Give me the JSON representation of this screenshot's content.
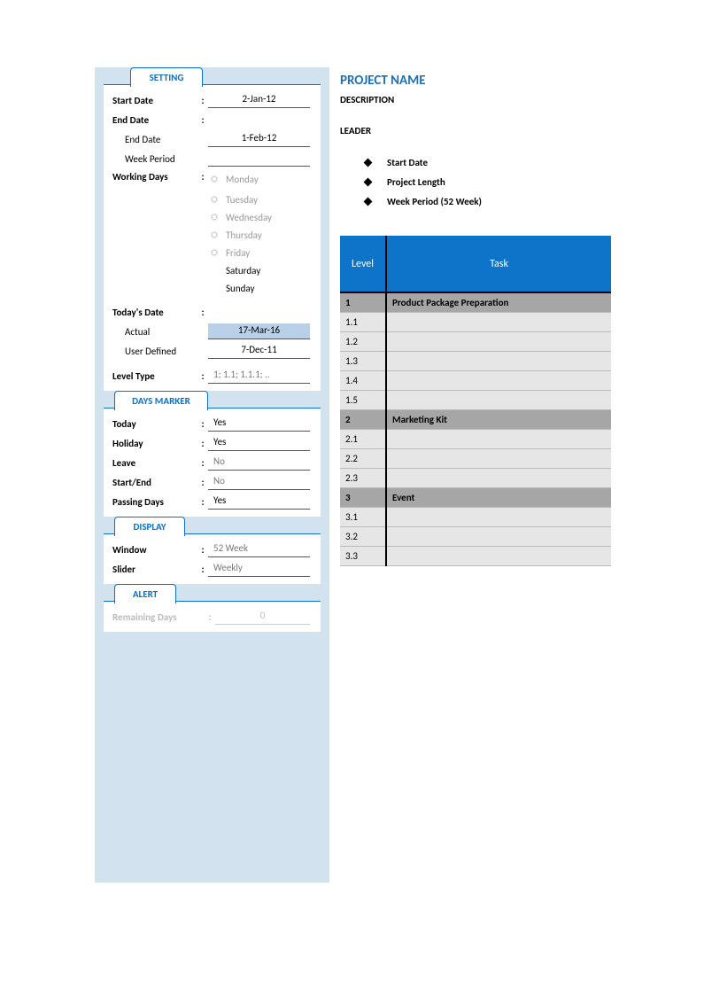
{
  "tabs": {
    "setting": "SETTING",
    "daysMarker": "DAYS MARKER",
    "display": "DISPLAY",
    "alert": "ALERT"
  },
  "setting": {
    "startDate": {
      "label": "Start Date",
      "value": "2-Jan-12"
    },
    "endDate": {
      "label": "End Date"
    },
    "endDateSub": {
      "label": "End Date",
      "value": "1-Feb-12"
    },
    "weekPeriod": {
      "label": "Week Period",
      "value": ""
    },
    "workingDays": {
      "label": "Working Days",
      "days": [
        {
          "name": "Monday",
          "disabled": true
        },
        {
          "name": "Tuesday",
          "disabled": true
        },
        {
          "name": "Wednesday",
          "disabled": true
        },
        {
          "name": "Thursday",
          "disabled": true
        },
        {
          "name": "Friday",
          "disabled": true
        },
        {
          "name": "Saturday",
          "disabled": false
        },
        {
          "name": "Sunday",
          "disabled": false
        }
      ]
    },
    "todaysDate": {
      "label": "Today's Date"
    },
    "actual": {
      "label": "Actual",
      "value": "17-Mar-16"
    },
    "userDefined": {
      "label": "User Defined",
      "value": "7-Dec-11"
    },
    "levelType": {
      "label": "Level Type",
      "value": "1; 1.1; 1.1.1; .."
    }
  },
  "daysMarker": {
    "today": {
      "label": "Today",
      "value": "Yes"
    },
    "holiday": {
      "label": "Holiday",
      "value": "Yes"
    },
    "leave": {
      "label": "Leave",
      "value": "No"
    },
    "startEnd": {
      "label": "Start/End",
      "value": "No"
    },
    "passingDays": {
      "label": "Passing Days",
      "value": "Yes"
    }
  },
  "display": {
    "window": {
      "label": "Window",
      "value": "52 Week"
    },
    "slider": {
      "label": "Slider",
      "value": "Weekly"
    }
  },
  "alert": {
    "remaining": {
      "label": "Remaining Days",
      "value": "0"
    }
  },
  "project": {
    "title": "PROJECT NAME",
    "description": "DESCRIPTION",
    "leader": "LEADER",
    "bullets": [
      "Start Date",
      "Project Length",
      "Week Period (52 Week)"
    ]
  },
  "grid": {
    "headers": {
      "level": "Level",
      "task": "Task"
    },
    "rows": [
      {
        "level": "1",
        "task": "Product Package Preparation",
        "type": "h"
      },
      {
        "level": "1.1",
        "task": "",
        "type": "s"
      },
      {
        "level": "1.2",
        "task": "",
        "type": "s"
      },
      {
        "level": "1.3",
        "task": "",
        "type": "s"
      },
      {
        "level": "1.4",
        "task": "",
        "type": "s"
      },
      {
        "level": "1.5",
        "task": "",
        "type": "s"
      },
      {
        "level": "2",
        "task": "Marketing Kit",
        "type": "h"
      },
      {
        "level": "2.1",
        "task": "",
        "type": "s"
      },
      {
        "level": "2.2",
        "task": "",
        "type": "s"
      },
      {
        "level": "2.3",
        "task": "",
        "type": "s"
      },
      {
        "level": "3",
        "task": "Event",
        "type": "h"
      },
      {
        "level": "3.1",
        "task": "",
        "type": "s"
      },
      {
        "level": "3.2",
        "task": "",
        "type": "s"
      },
      {
        "level": "3.3",
        "task": "",
        "type": "s"
      }
    ]
  },
  "colors": {
    "panelBg": "#d3e2ef",
    "accent": "#0f6fc6",
    "headerBg": "#0d74c9",
    "groupRow": "#a6a6a6",
    "subRow": "#e6e6e6"
  }
}
